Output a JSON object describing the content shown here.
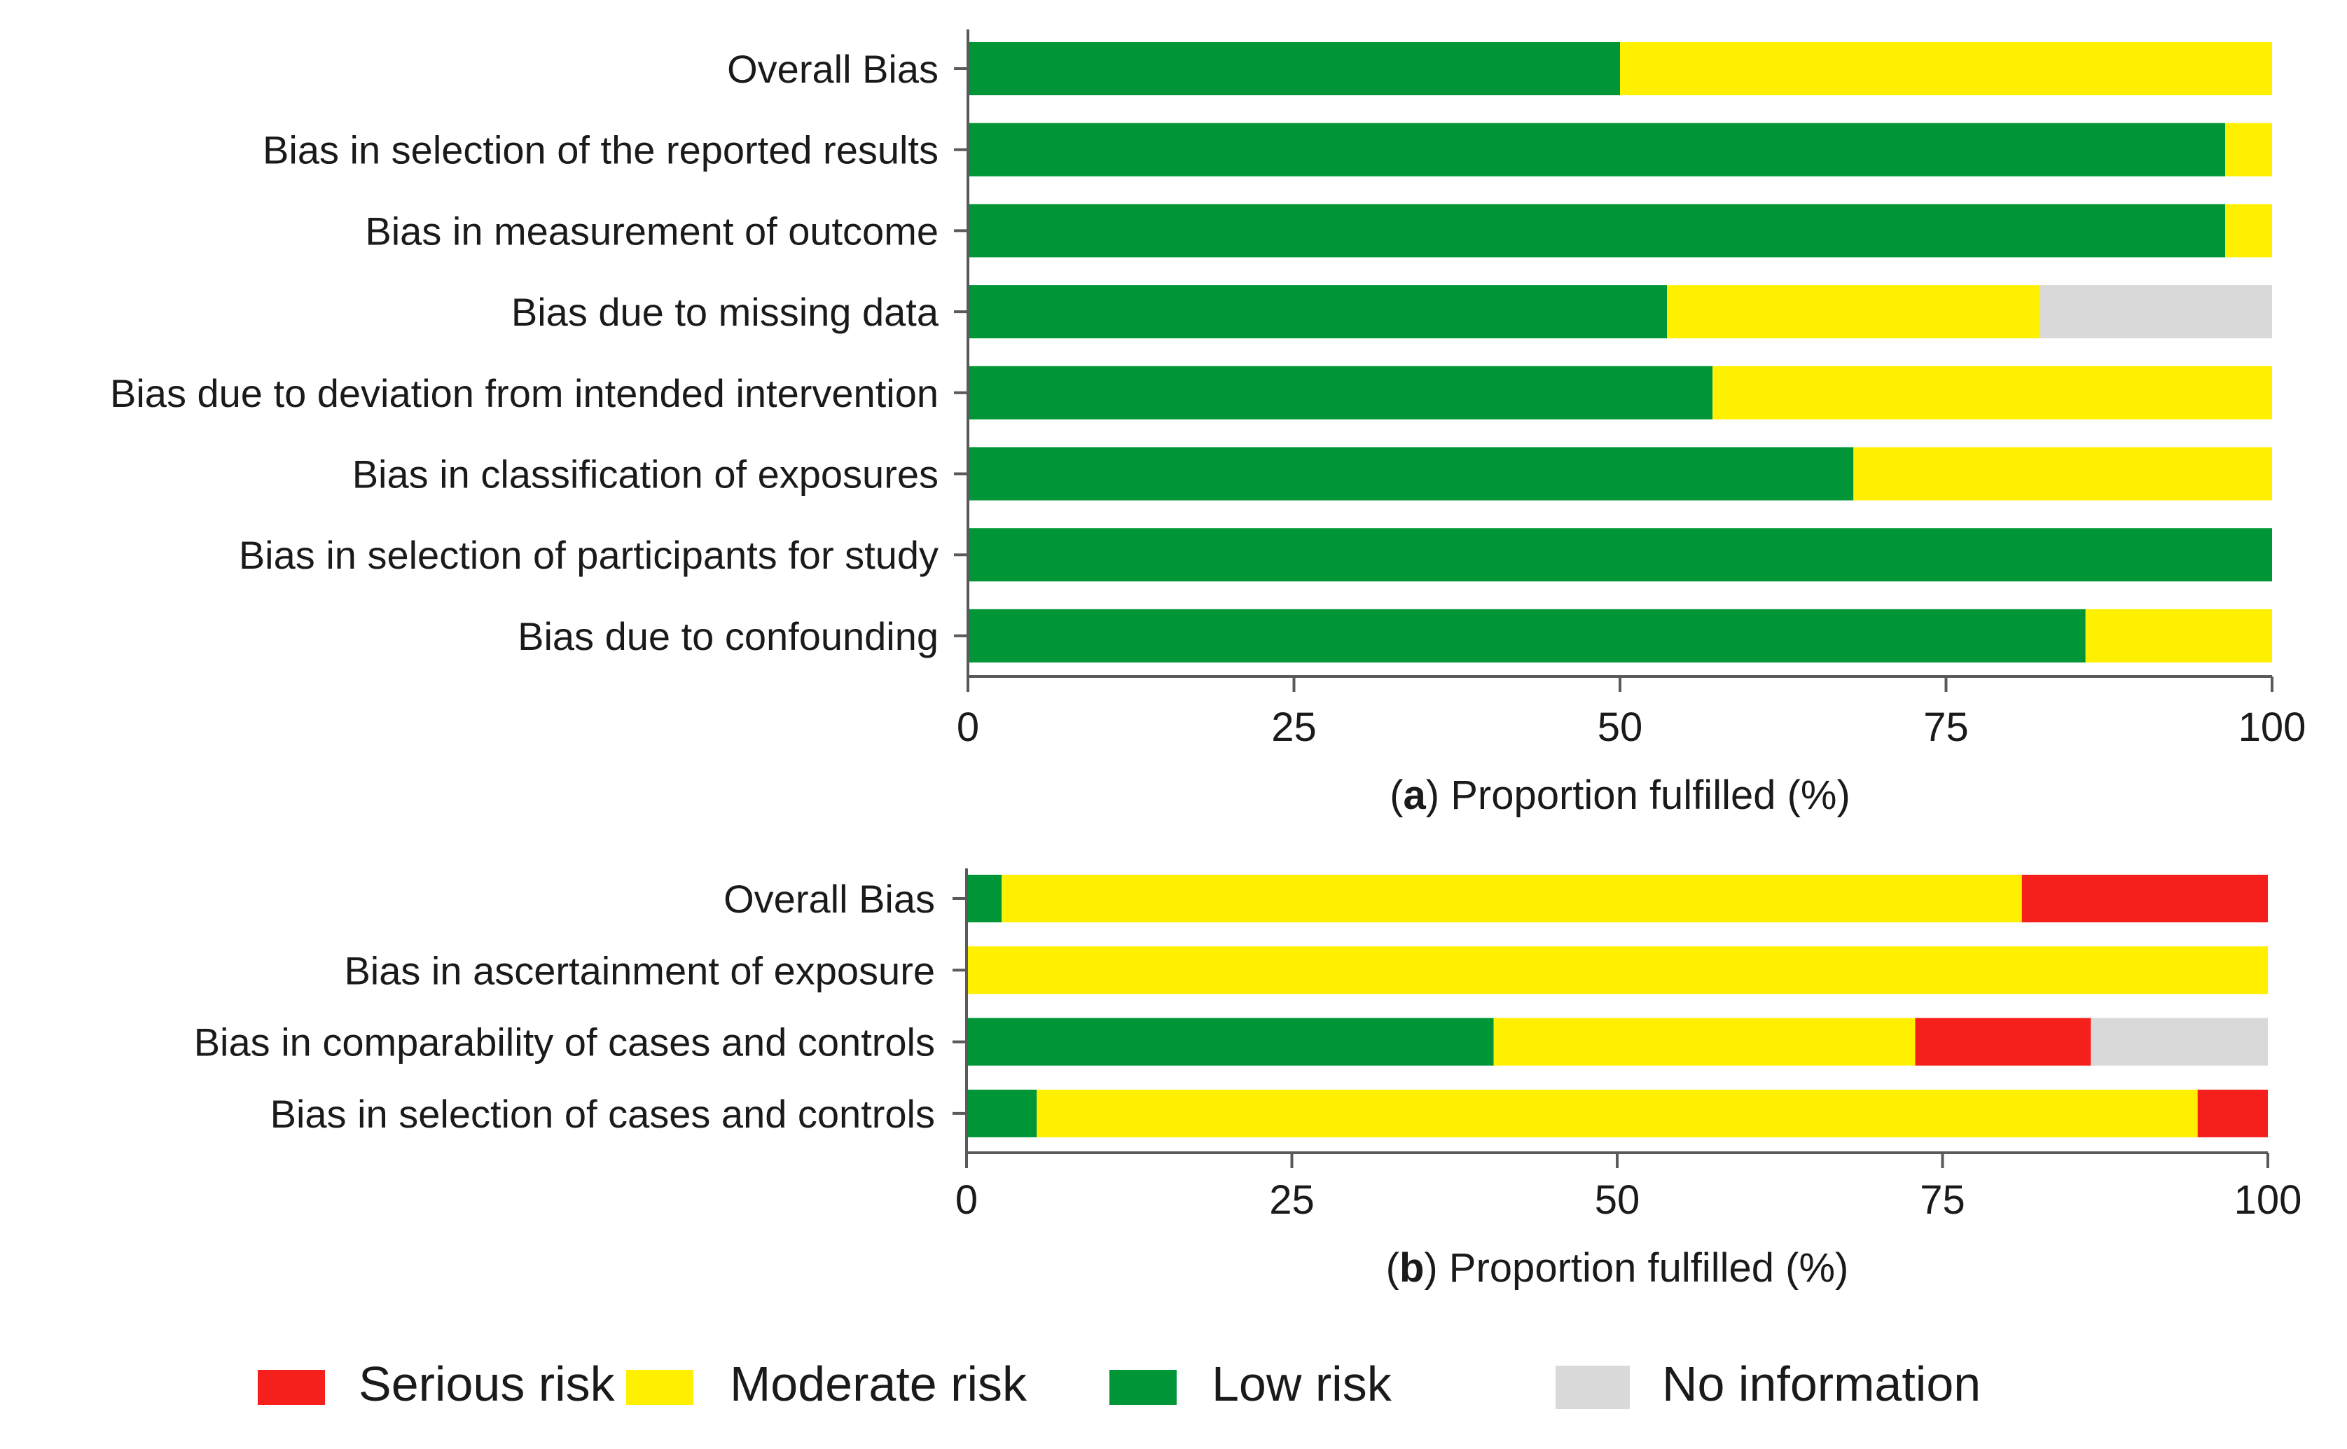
{
  "colors": {
    "serious": "#f5201c",
    "moderate": "#fff000",
    "low": "#009536",
    "noinfo": "#d9d9d9"
  },
  "legend": {
    "serious": "Serious risk",
    "moderate": "Moderate risk",
    "low": "Low risk",
    "noinfo": "No information"
  },
  "chart_data": [
    {
      "type": "bar",
      "orientation": "horizontal",
      "stacked": true,
      "panel": "a",
      "xlabel_prefix": "(",
      "xlabel_bold": "a",
      "xlabel_suffix": ") Proportion fulfilled (%)",
      "xlim": [
        0,
        100
      ],
      "xticks": [
        0,
        25,
        50,
        75,
        100
      ],
      "categories": [
        "Overall Bias",
        "Bias in selection of the reported results",
        "Bias in measurement of outcome",
        "Bias due to missing data",
        "Bias due to deviation from intended intervention",
        "Bias in classification of exposures",
        "Bias in selection of participants for study",
        "Bias due to confounding"
      ],
      "series": [
        {
          "name": "Low risk",
          "key": "low",
          "values": [
            50,
            96.4,
            96.4,
            53.6,
            57.1,
            67.9,
            100,
            85.7
          ]
        },
        {
          "name": "Moderate risk",
          "key": "moderate",
          "values": [
            50,
            3.6,
            3.6,
            28.6,
            42.9,
            32.1,
            0,
            14.3
          ]
        },
        {
          "name": "No information",
          "key": "noinfo",
          "values": [
            0,
            0,
            0,
            17.8,
            0,
            0,
            0,
            0
          ]
        }
      ]
    },
    {
      "type": "bar",
      "orientation": "horizontal",
      "stacked": true,
      "panel": "b",
      "xlabel_prefix": "(",
      "xlabel_bold": "b",
      "xlabel_suffix": ") Proportion fulfilled (%)",
      "xlim": [
        0,
        100
      ],
      "xticks": [
        0,
        25,
        50,
        75,
        100
      ],
      "categories": [
        "Overall Bias",
        "Bias in ascertainment of exposure",
        "Bias in comparability of cases and controls",
        "Bias in selection of cases and controls"
      ],
      "series": [
        {
          "name": "Low risk",
          "key": "low",
          "values": [
            2.7,
            0,
            40.5,
            5.4
          ]
        },
        {
          "name": "Moderate risk",
          "key": "moderate",
          "values": [
            78.4,
            100,
            32.4,
            89.2
          ]
        },
        {
          "name": "Serious risk",
          "key": "serious",
          "values": [
            18.9,
            0,
            13.5,
            5.4
          ]
        },
        {
          "name": "No information",
          "key": "noinfo",
          "values": [
            0,
            0,
            13.6,
            0
          ]
        }
      ]
    }
  ]
}
